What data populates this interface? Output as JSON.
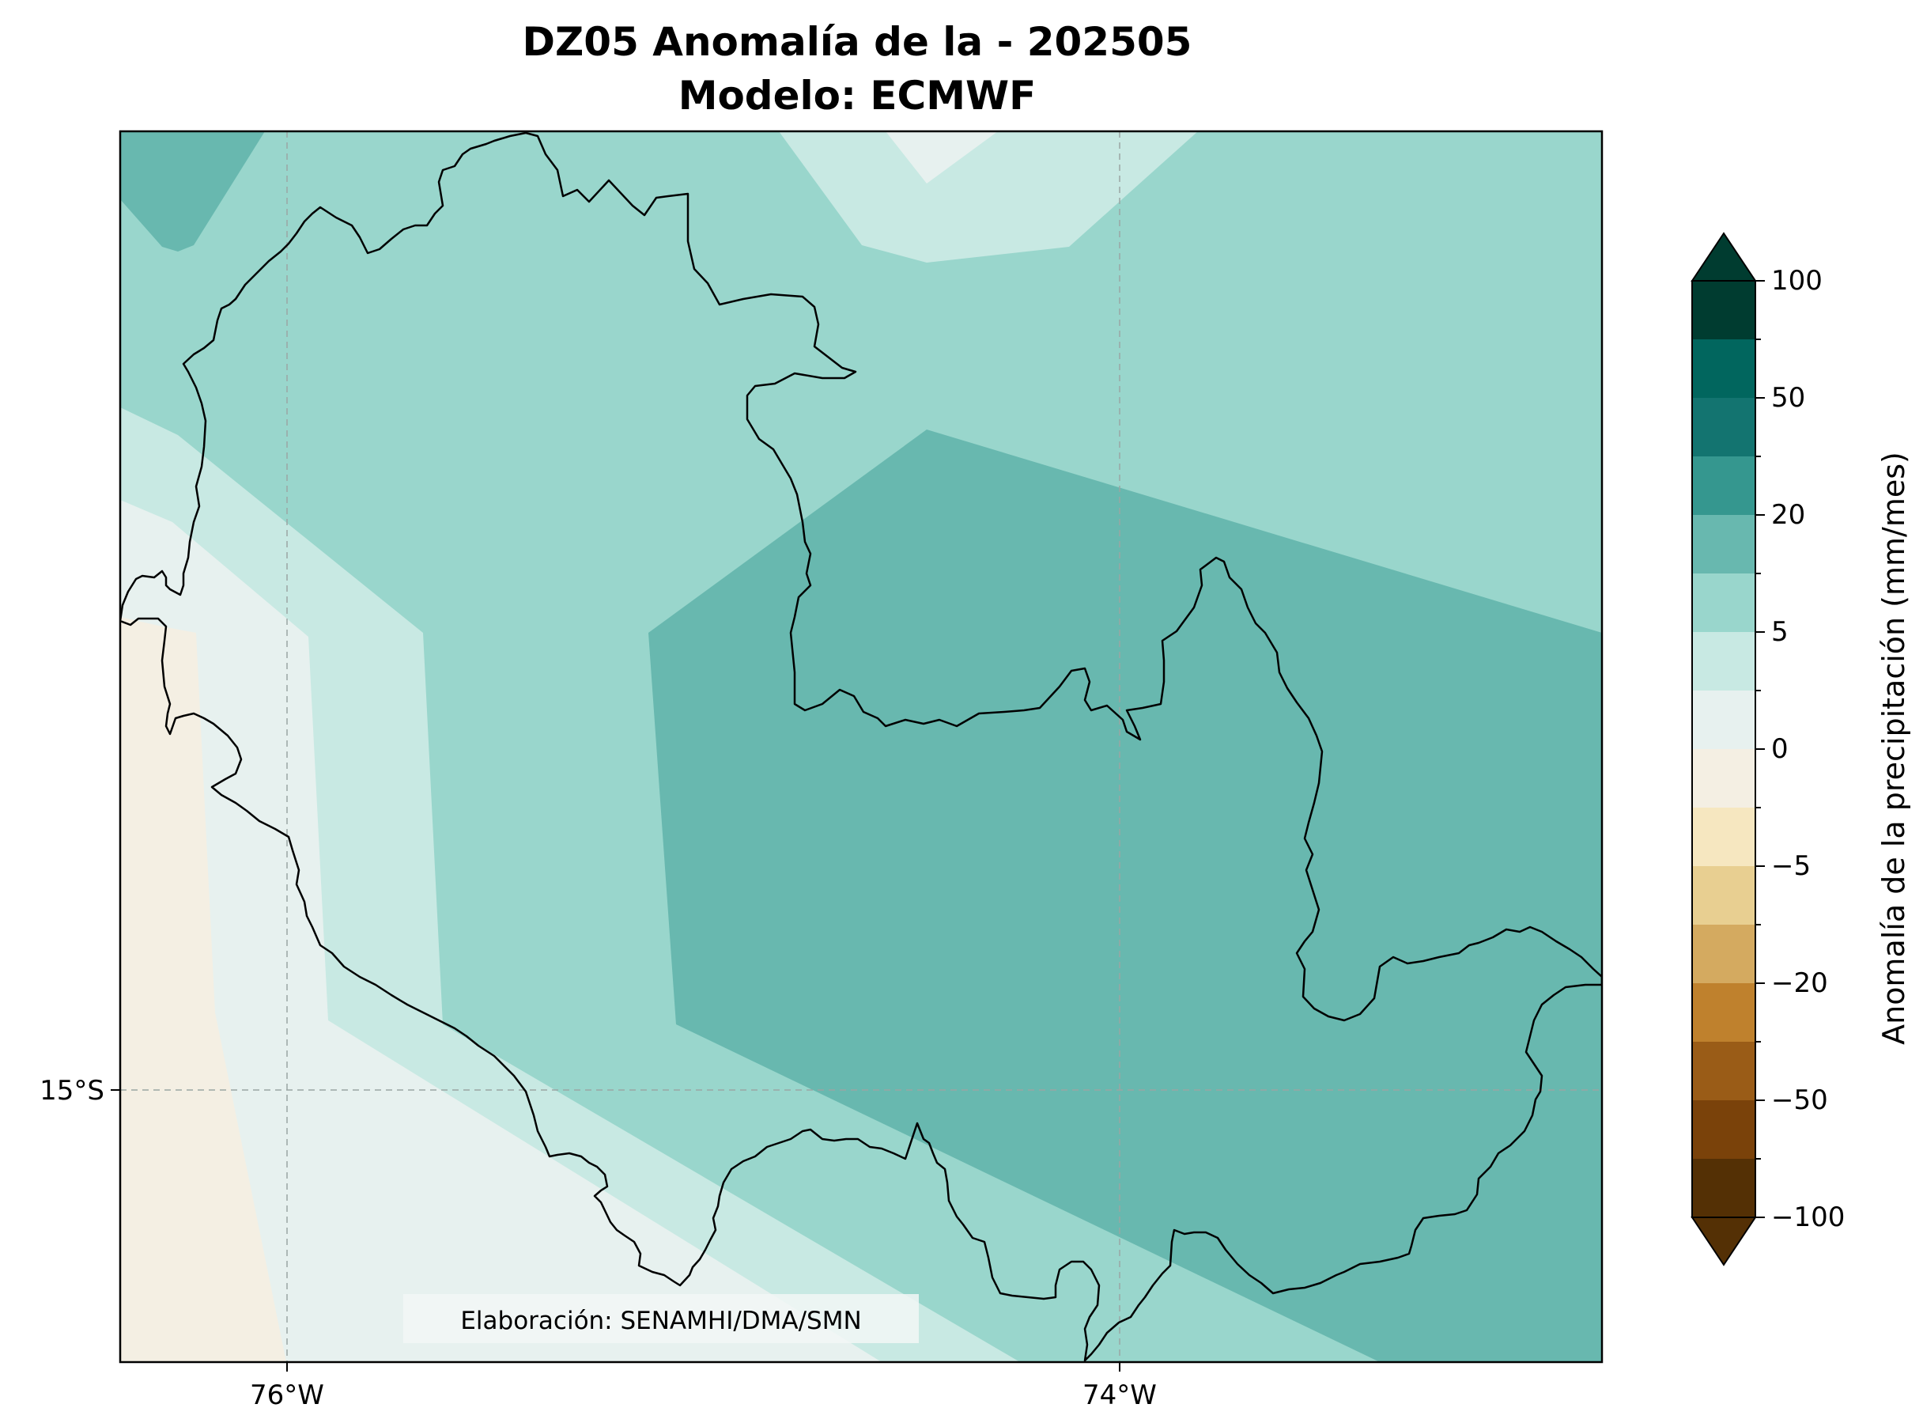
{
  "title": {
    "line1": "DZ05 Anomalía de la - 202505",
    "line2": "Modelo: ECMWF"
  },
  "map": {
    "lon_labels": [
      "76°W",
      "74°W"
    ],
    "lat_labels": [
      "15°S"
    ],
    "credit": "Elaboración: SENAMHI/DMA/SMN",
    "gridlines": "dashed"
  },
  "colorbar": {
    "label": "Anomalía de la precipitación (mm/mes)",
    "tick_labels": [
      "100",
      "50",
      "20",
      "5",
      "0",
      "−5",
      "−20",
      "−50",
      "−100"
    ],
    "extend": "both",
    "colors_top_to_bottom": [
      "#003c30",
      "#01665e",
      "#137470",
      "#35978f",
      "#68b8af",
      "#99d6cc",
      "#c8e9e3",
      "#e7f1ef",
      "#f4efe3",
      "#f6e7c0",
      "#e8cf91",
      "#d4aa60",
      "#bf812d",
      "#9a5c17",
      "#7a420a",
      "#543005"
    ],
    "extend_top_color": "#003c30",
    "extend_bottom_color": "#543005"
  },
  "palette": {
    "ocean_neg": "#f4efe3",
    "near_zero": "#e7f1ef",
    "pos_low": "#c8e9e3",
    "pos_mid": "#99d6cc",
    "pos_high": "#68b8af",
    "gridline": "#9aa5a3",
    "boundary": "#000000"
  }
}
